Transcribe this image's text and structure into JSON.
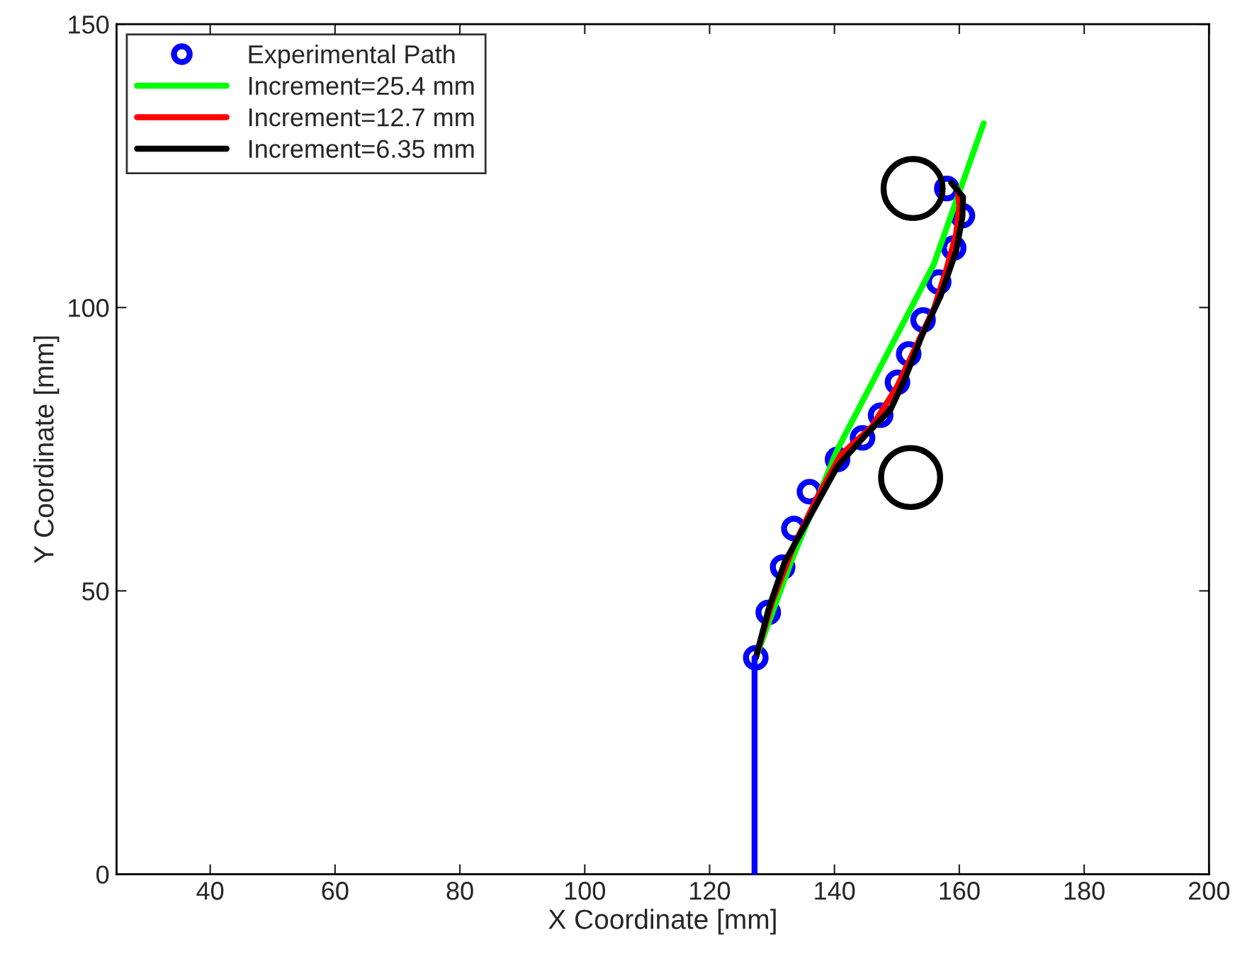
{
  "chart_data": {
    "type": "line",
    "xlabel": "X Coordinate [mm]",
    "ylabel": "Y Coordinate [mm]",
    "xlim": [
      25,
      200
    ],
    "ylim": [
      0,
      150
    ],
    "xticks": [
      40,
      60,
      80,
      100,
      120,
      140,
      160,
      180,
      200
    ],
    "yticks": [
      0,
      50,
      100,
      150
    ],
    "grid": false,
    "legend": "top left",
    "series": [
      {
        "name": "Experimental Path",
        "type": "scatter",
        "marker": "circle",
        "color": "#0000ff",
        "x": [
          127.4,
          129.4,
          131.7,
          133.5,
          136,
          140.5,
          144.5,
          147.4,
          150.1,
          151.9,
          154.2,
          156.7,
          159.1,
          160.5,
          158
        ],
        "values": [
          38.2,
          46.2,
          54.2,
          61,
          67.5,
          73.2,
          77,
          81,
          86.8,
          91.8,
          97.8,
          104.5,
          110.5,
          116.2,
          121
        ]
      },
      {
        "name": "Increment=25.4 mm",
        "color": "#00ff00",
        "x": [
          127.4,
          133,
          140.5,
          155.9,
          163.9
        ],
        "values": [
          38.2,
          55,
          75,
          107.6,
          132.5
        ]
      },
      {
        "name": "Increment=12.7 mm",
        "color": "#ff0000",
        "x": [
          127.4,
          130,
          133.5,
          137,
          141,
          146,
          150,
          153,
          156,
          158,
          159.5,
          160,
          159.7
        ],
        "values": [
          38.2,
          48,
          58,
          66,
          74,
          79,
          86,
          93,
          100,
          107,
          113,
          118,
          121
        ]
      },
      {
        "name": "Increment=6.35 mm",
        "color": "#000000",
        "x": [
          127.4,
          129.5,
          132,
          136,
          140.5,
          145,
          149,
          151.5,
          154,
          157,
          159.5,
          160.5,
          160.6,
          158.7
        ],
        "values": [
          38.2,
          47,
          55,
          63,
          72,
          77.5,
          82,
          88,
          95,
          102,
          110,
          116,
          119.5,
          122
        ]
      },
      {
        "color": "#0000ff",
        "x": [
          127.2,
          127.2
        ],
        "values": [
          0,
          38.2
        ]
      },
      {
        "type": "scatter",
        "marker": "circle",
        "color": "#000000",
        "x": [
          152.6,
          152.2
        ],
        "values": [
          121,
          70
        ]
      }
    ]
  }
}
